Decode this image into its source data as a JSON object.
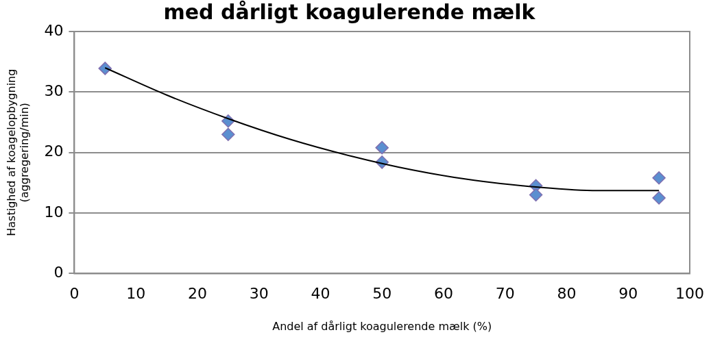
{
  "chart_data": {
    "type": "scatter",
    "title": "med dårligt koagulerende mælk",
    "xlabel": "Andel af dårligt koagulerende mælk (%)",
    "ylabel": "Hastighed af koagelopbygning\n(aggregering/min)",
    "x": [
      5,
      25,
      25,
      50,
      50,
      75,
      75,
      95,
      95
    ],
    "series": [
      {
        "color": "#5b8fd0",
        "values": [
          33.9,
          25.2,
          23.0,
          20.8,
          18.4,
          14.5,
          13.0,
          15.8,
          12.5
        ]
      },
      {
        "type": "line",
        "color": "#000000",
        "marker": "none",
        "x": [
          5,
          15,
          25,
          35,
          45,
          55,
          65,
          75,
          85,
          95
        ],
        "values": [
          34.0,
          29.5,
          25.6,
          22.2,
          19.4,
          17.1,
          15.4,
          14.3,
          13.7,
          13.7
        ]
      }
    ],
    "xlim": [
      0,
      100
    ],
    "xticks": [
      0,
      10,
      20,
      30,
      40,
      50,
      60,
      70,
      80,
      90,
      100
    ],
    "ylim": [
      0,
      40
    ],
    "yticks": [
      0,
      10,
      20,
      30,
      40
    ],
    "grid": "y",
    "legend": false,
    "marker": "diamond"
  }
}
